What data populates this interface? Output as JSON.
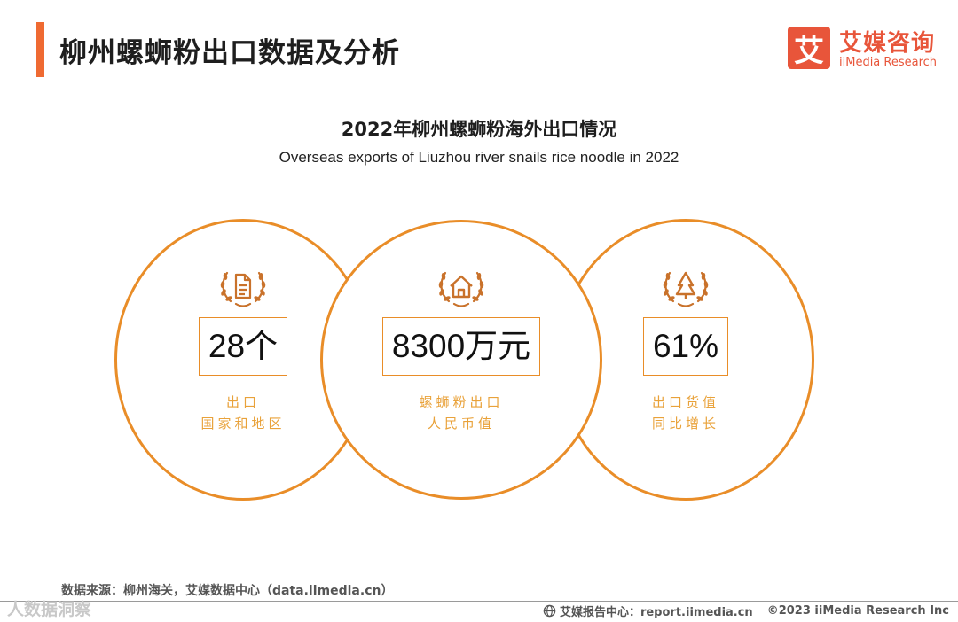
{
  "header": {
    "title": "柳州螺蛳粉出口数据及分析",
    "logo_mark": "艾",
    "logo_cn": "艾媒咨询",
    "logo_en": "iiMedia Research"
  },
  "chart": {
    "title": "2022年柳州螺蛳粉海外出口情况",
    "subtitle": "Overseas exports of Liuzhou river snails rice noodle in 2022"
  },
  "stats": [
    {
      "icon": "badge-document-icon",
      "value": "28个",
      "label_line1": "出口",
      "label_line2": "国家和地区"
    },
    {
      "icon": "badge-house-icon",
      "value": "8300万元",
      "label_line1": "螺蛳粉出口",
      "label_line2": "人民币值"
    },
    {
      "icon": "badge-tree-icon",
      "value": "61%",
      "label_line1": "出口货值",
      "label_line2": "同比增长"
    }
  ],
  "footer": {
    "source": "数据来源：柳州海关，艾媒数据中心（data.iimedia.cn）",
    "report_center": "艾媒报告中心：report.iimedia.cn",
    "copyright": "©2023  iiMedia Research  Inc",
    "watermark": "人数据洞察"
  },
  "colors": {
    "accent": "#ef6a32",
    "circle_border": "#e98d28",
    "label_text": "#e9a23a",
    "icon": "#c9722b"
  }
}
